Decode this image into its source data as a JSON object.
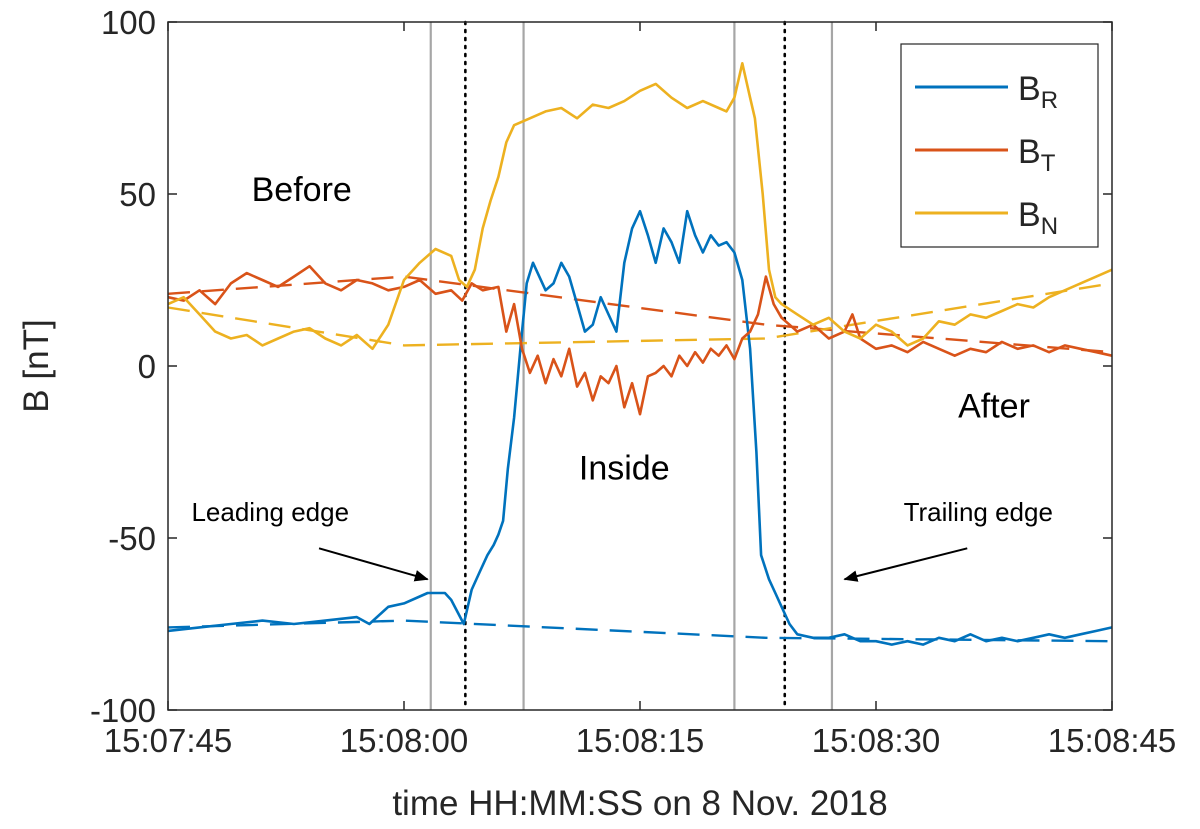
{
  "chart_data": {
    "type": "line",
    "xlabel": "time HH:MM:SS on 8 Nov. 2018",
    "ylabel": "B [nT]",
    "x_range_s": [
      0,
      60
    ],
    "ylim": [
      -100,
      100
    ],
    "x_ticks": [
      {
        "t": 0,
        "label": "15:07:45"
      },
      {
        "t": 15,
        "label": "15:08:00"
      },
      {
        "t": 30,
        "label": "15:08:15"
      },
      {
        "t": 45,
        "label": "15:08:30"
      },
      {
        "t": 60,
        "label": "15:08:45"
      }
    ],
    "y_ticks": [
      {
        "v": 100,
        "label": "100"
      },
      {
        "v": 50,
        "label": "50"
      },
      {
        "v": 0,
        "label": "0"
      },
      {
        "v": -50,
        "label": "-50"
      },
      {
        "v": -100,
        "label": "-100"
      }
    ],
    "legend": {
      "position": "top-right",
      "entries": [
        {
          "base": "B",
          "sub": "R",
          "color": "#0072BD"
        },
        {
          "base": "B",
          "sub": "T",
          "color": "#D95319"
        },
        {
          "base": "B",
          "sub": "N",
          "color": "#EDB120"
        }
      ]
    },
    "series": [
      {
        "name": "B_R",
        "color": "#0072BD",
        "points": [
          [
            0,
            -77
          ],
          [
            2,
            -76
          ],
          [
            4,
            -75
          ],
          [
            6,
            -74
          ],
          [
            8,
            -75
          ],
          [
            10,
            -74
          ],
          [
            12,
            -73
          ],
          [
            12.8,
            -75
          ],
          [
            14,
            -70
          ],
          [
            15,
            -69
          ],
          [
            16,
            -67
          ],
          [
            16.5,
            -66
          ],
          [
            17,
            -66
          ],
          [
            17.6,
            -66
          ],
          [
            18,
            -68
          ],
          [
            18.8,
            -75
          ],
          [
            19.3,
            -65
          ],
          [
            19.8,
            -60
          ],
          [
            20.3,
            -55
          ],
          [
            20.7,
            -52
          ],
          [
            21,
            -49
          ],
          [
            21.3,
            -45
          ],
          [
            21.6,
            -30
          ],
          [
            22,
            -15
          ],
          [
            22.4,
            5
          ],
          [
            22.8,
            24
          ],
          [
            23.2,
            30
          ],
          [
            23.6,
            26
          ],
          [
            24,
            22
          ],
          [
            24.5,
            24
          ],
          [
            25,
            30
          ],
          [
            25.5,
            26
          ],
          [
            26,
            18
          ],
          [
            26.5,
            10
          ],
          [
            27,
            12
          ],
          [
            27.5,
            20
          ],
          [
            28,
            15
          ],
          [
            28.5,
            10
          ],
          [
            29,
            30
          ],
          [
            29.5,
            40
          ],
          [
            30,
            45
          ],
          [
            30.5,
            38
          ],
          [
            31,
            30
          ],
          [
            31.5,
            40
          ],
          [
            32,
            36
          ],
          [
            32.5,
            30
          ],
          [
            33,
            45
          ],
          [
            33.5,
            38
          ],
          [
            34,
            33
          ],
          [
            34.5,
            38
          ],
          [
            35,
            35
          ],
          [
            35.5,
            36
          ],
          [
            36,
            33
          ],
          [
            36.5,
            25
          ],
          [
            37,
            5
          ],
          [
            37.4,
            -25
          ],
          [
            37.7,
            -55
          ],
          [
            38.2,
            -62
          ],
          [
            38.6,
            -66
          ],
          [
            39,
            -70
          ],
          [
            39.5,
            -75
          ],
          [
            40,
            -78
          ],
          [
            41,
            -79
          ],
          [
            42,
            -79
          ],
          [
            43,
            -78
          ],
          [
            44,
            -80
          ],
          [
            45,
            -80
          ],
          [
            46,
            -81
          ],
          [
            47,
            -80
          ],
          [
            48,
            -81
          ],
          [
            49,
            -79
          ],
          [
            50,
            -80
          ],
          [
            51,
            -78
          ],
          [
            52,
            -80
          ],
          [
            53,
            -79
          ],
          [
            54,
            -80
          ],
          [
            55,
            -79
          ],
          [
            56,
            -78
          ],
          [
            57,
            -79
          ],
          [
            58,
            -78
          ],
          [
            59,
            -77
          ],
          [
            60,
            -76
          ]
        ]
      },
      {
        "name": "B_T",
        "color": "#D95319",
        "points": [
          [
            0,
            20
          ],
          [
            1,
            19
          ],
          [
            2,
            22
          ],
          [
            3,
            18
          ],
          [
            4,
            24
          ],
          [
            5,
            27
          ],
          [
            6,
            25
          ],
          [
            7,
            23
          ],
          [
            8,
            26
          ],
          [
            9,
            29
          ],
          [
            10,
            24
          ],
          [
            11,
            22
          ],
          [
            12,
            25
          ],
          [
            13,
            24
          ],
          [
            14,
            22
          ],
          [
            15,
            23
          ],
          [
            16,
            25
          ],
          [
            17,
            21
          ],
          [
            18,
            22
          ],
          [
            18.7,
            19
          ],
          [
            19.3,
            24
          ],
          [
            20,
            22
          ],
          [
            21,
            23
          ],
          [
            21.5,
            10
          ],
          [
            22,
            18
          ],
          [
            22.5,
            5
          ],
          [
            23,
            -2
          ],
          [
            23.5,
            3
          ],
          [
            24,
            -5
          ],
          [
            24.5,
            2
          ],
          [
            25,
            -3
          ],
          [
            25.5,
            5
          ],
          [
            26,
            -6
          ],
          [
            26.5,
            -2
          ],
          [
            27,
            -10
          ],
          [
            27.5,
            -3
          ],
          [
            28,
            -5
          ],
          [
            28.5,
            0
          ],
          [
            29,
            -12
          ],
          [
            29.5,
            -5
          ],
          [
            30,
            -14
          ],
          [
            30.5,
            -3
          ],
          [
            31,
            -2
          ],
          [
            31.5,
            0
          ],
          [
            32,
            -3
          ],
          [
            32.5,
            3
          ],
          [
            33,
            0
          ],
          [
            33.5,
            4
          ],
          [
            34,
            1
          ],
          [
            34.5,
            5
          ],
          [
            35,
            3
          ],
          [
            35.5,
            6
          ],
          [
            36,
            2
          ],
          [
            36.5,
            8
          ],
          [
            37,
            10
          ],
          [
            37.5,
            15
          ],
          [
            38,
            26
          ],
          [
            38.5,
            18
          ],
          [
            39,
            14
          ],
          [
            39.5,
            12
          ],
          [
            40,
            10
          ],
          [
            41,
            12
          ],
          [
            42,
            8
          ],
          [
            43,
            10
          ],
          [
            43.5,
            15
          ],
          [
            44,
            8
          ],
          [
            45,
            5
          ],
          [
            46,
            6
          ],
          [
            47,
            4
          ],
          [
            48,
            7
          ],
          [
            49,
            5
          ],
          [
            50,
            3
          ],
          [
            51,
            5
          ],
          [
            52,
            4
          ],
          [
            53,
            7
          ],
          [
            54,
            5
          ],
          [
            55,
            6
          ],
          [
            56,
            4
          ],
          [
            57,
            6
          ],
          [
            58,
            5
          ],
          [
            59,
            4
          ],
          [
            60,
            3
          ]
        ]
      },
      {
        "name": "B_N",
        "color": "#EDB120",
        "points": [
          [
            0,
            18
          ],
          [
            1,
            20
          ],
          [
            2,
            15
          ],
          [
            3,
            10
          ],
          [
            4,
            8
          ],
          [
            5,
            9
          ],
          [
            6,
            6
          ],
          [
            7,
            8
          ],
          [
            8,
            10
          ],
          [
            9,
            11
          ],
          [
            10,
            8
          ],
          [
            11,
            6
          ],
          [
            12,
            9
          ],
          [
            13,
            5
          ],
          [
            14,
            12
          ],
          [
            15,
            25
          ],
          [
            16,
            30
          ],
          [
            17,
            34
          ],
          [
            18,
            32
          ],
          [
            18.5,
            25
          ],
          [
            19,
            23
          ],
          [
            19.5,
            28
          ],
          [
            20,
            40
          ],
          [
            20.5,
            48
          ],
          [
            21,
            55
          ],
          [
            21.5,
            65
          ],
          [
            22,
            70
          ],
          [
            23,
            72
          ],
          [
            24,
            74
          ],
          [
            25,
            75
          ],
          [
            26,
            72
          ],
          [
            27,
            76
          ],
          [
            28,
            75
          ],
          [
            29,
            77
          ],
          [
            30,
            80
          ],
          [
            31,
            82
          ],
          [
            32,
            78
          ],
          [
            33,
            75
          ],
          [
            34,
            77
          ],
          [
            35,
            75
          ],
          [
            35.5,
            74
          ],
          [
            36,
            78
          ],
          [
            36.5,
            88
          ],
          [
            37,
            78
          ],
          [
            37.3,
            72
          ],
          [
            37.8,
            50
          ],
          [
            38.2,
            28
          ],
          [
            38.6,
            20
          ],
          [
            39,
            18
          ],
          [
            40,
            15
          ],
          [
            41,
            12
          ],
          [
            42,
            14
          ],
          [
            43,
            10
          ],
          [
            44,
            8
          ],
          [
            45,
            12
          ],
          [
            46,
            10
          ],
          [
            47,
            6
          ],
          [
            48,
            8
          ],
          [
            49,
            13
          ],
          [
            50,
            12
          ],
          [
            51,
            15
          ],
          [
            52,
            14
          ],
          [
            53,
            16
          ],
          [
            54,
            18
          ],
          [
            55,
            17
          ],
          [
            56,
            20
          ],
          [
            57,
            22
          ],
          [
            58,
            24
          ],
          [
            59,
            26
          ],
          [
            60,
            28
          ]
        ]
      }
    ],
    "trend_lines": [
      {
        "series": "B_R",
        "color": "#0072BD",
        "points": [
          [
            0,
            -76
          ],
          [
            15,
            -74
          ],
          [
            38,
            -79
          ],
          [
            60,
            -80
          ]
        ]
      },
      {
        "series": "B_T",
        "color": "#D95319",
        "points": [
          [
            0,
            21
          ],
          [
            15,
            26
          ],
          [
            38,
            12
          ],
          [
            60,
            4
          ]
        ]
      },
      {
        "series": "B_N",
        "color": "#EDB120",
        "points": [
          [
            0,
            17
          ],
          [
            15,
            6
          ],
          [
            38,
            8
          ],
          [
            60,
            24
          ]
        ]
      }
    ],
    "vertical_lines": {
      "solid": [
        16.7,
        22.6,
        36.0,
        42.2
      ],
      "dotted": [
        18.9,
        39.2
      ]
    },
    "annotations": [
      {
        "text": "Before",
        "name": "label-before",
        "at": [
          8.5,
          48
        ]
      },
      {
        "text": "After",
        "name": "label-after",
        "at": [
          52.5,
          -15
        ]
      },
      {
        "text": "Inside",
        "name": "label-inside",
        "at": [
          29,
          -33
        ]
      },
      {
        "text": "Leading edge",
        "name": "label-leading-edge",
        "at": [
          6.5,
          -45
        ],
        "arrow_from": [
          9.6,
          -53
        ],
        "arrow_to": [
          16.5,
          -62
        ]
      },
      {
        "text": "Trailing edge",
        "name": "label-trailing-edge",
        "at": [
          51.5,
          -45
        ],
        "arrow_from": [
          50.8,
          -53
        ],
        "arrow_to": [
          43,
          -62
        ]
      }
    ]
  }
}
